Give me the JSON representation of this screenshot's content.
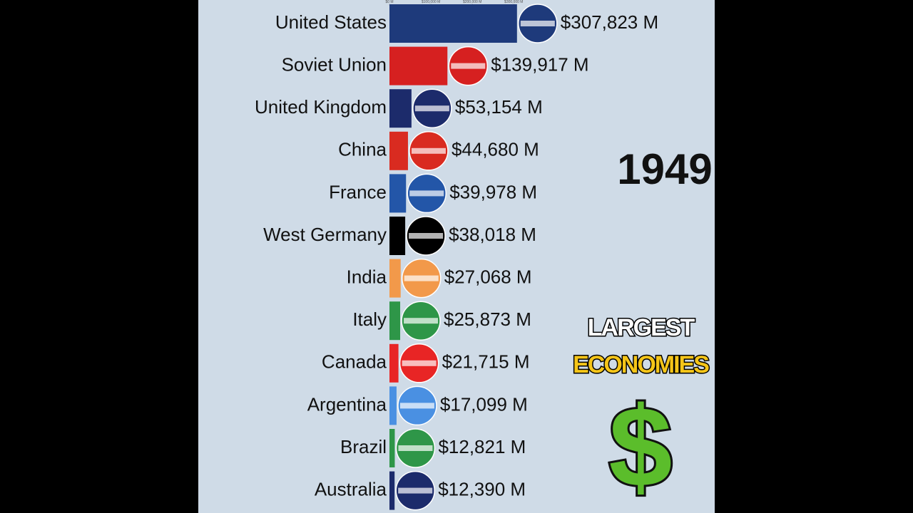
{
  "chart_data": {
    "type": "bar",
    "orientation": "horizontal",
    "year": "1949",
    "headline": [
      "LARGEST",
      "ECONOMIES"
    ],
    "symbol": "$",
    "categories": [
      "United States",
      "Soviet Union",
      "United Kingdom",
      "China",
      "France",
      "West Germany",
      "India",
      "Italy",
      "Canada",
      "Argentina",
      "Brazil",
      "Australia"
    ],
    "values": [
      307823,
      139917,
      53154,
      44680,
      39978,
      38018,
      27068,
      25873,
      21715,
      17099,
      12821,
      12390
    ],
    "value_labels": [
      "$307,823 M",
      "$139,917 M",
      "$53,154 M",
      "$44,680 M",
      "$39,978 M",
      "$38,018 M",
      "$27,068 M",
      "$25,873 M",
      "$21,715 M",
      "$17,099 M",
      "$12,821 M",
      "$12,390 M"
    ],
    "colors": [
      "#1e3a7b",
      "#d62020",
      "#1c2b6b",
      "#d92b20",
      "#2356a8",
      "#000000",
      "#f2994a",
      "#2e9648",
      "#e82525",
      "#4a90e2",
      "#2e9648",
      "#1c2b6b"
    ],
    "xlim": [
      0,
      785000
    ],
    "xticks": [
      {
        "value": 0,
        "label": "$0 M"
      },
      {
        "value": 100000,
        "label": "$100,000 M"
      },
      {
        "value": 200000,
        "label": "$200,000 M"
      },
      {
        "value": 300000,
        "label": "$300,000 M"
      }
    ]
  }
}
